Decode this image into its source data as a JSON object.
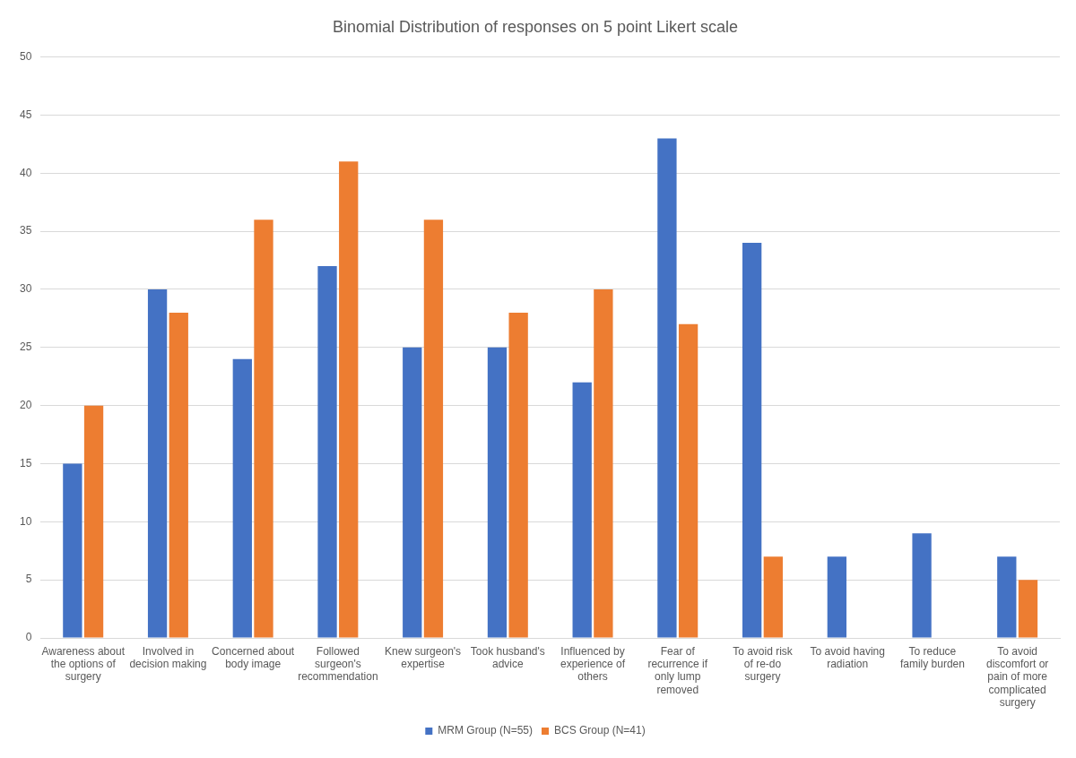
{
  "chart_data": {
    "type": "bar",
    "title": "Binomial Distribution of responses on 5 point Likert scale",
    "categories": [
      "Awareness about the options of surgery",
      "Involved in decision making",
      "Concerned about body image",
      "Followed surgeon's recommendation",
      "Knew surgeon's expertise",
      "Took husband's advice",
      "Influenced by experience of others",
      "Fear of recurrence if only lump removed",
      "To avoid risk of re-do surgery",
      "To avoid having radiation",
      "To reduce family burden",
      "To avoid discomfort or pain of more complicated surgery"
    ],
    "series": [
      {
        "name": "MRM Group (N=55)",
        "color": "#4472c4",
        "values": [
          15,
          30,
          24,
          32,
          25,
          25,
          22,
          43,
          34,
          7,
          9,
          7
        ]
      },
      {
        "name": "BCS Group (N=41)",
        "color": "#ed7d31",
        "values": [
          20,
          28,
          36,
          41,
          36,
          28,
          30,
          27,
          7,
          0,
          0,
          5
        ]
      }
    ],
    "ylim": [
      0,
      50
    ],
    "yticks": [
      0,
      5,
      10,
      15,
      20,
      25,
      30,
      35,
      40,
      45,
      50
    ],
    "grid": "y",
    "legend": "bottom"
  }
}
